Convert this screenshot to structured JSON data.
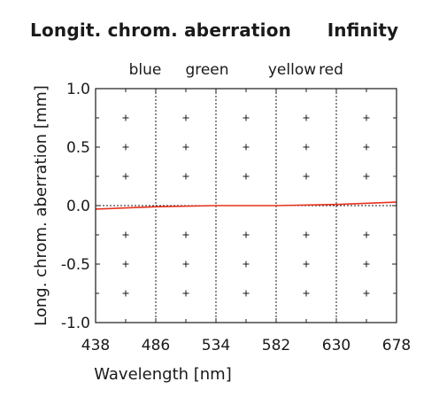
{
  "chart_data": {
    "type": "line",
    "title": "Longit. chrom. aberration",
    "subtitle": "Infinity",
    "xlabel": "Wavelength [nm]",
    "ylabel": "Long. chrom. aberration [mm]",
    "xlim": [
      438,
      678
    ],
    "ylim": [
      -1.0,
      1.0
    ],
    "xticks": [
      438,
      486,
      534,
      582,
      630,
      678
    ],
    "yticks": [
      1.0,
      0.5,
      0.0,
      -0.5,
      -1.0
    ],
    "ytick_labels": [
      "1.0",
      "0.5",
      "0.0",
      "-0.5",
      "-1.0"
    ],
    "band_lines": [
      {
        "label": "blue",
        "x": 486
      },
      {
        "label": "green",
        "x": 534
      },
      {
        "label": "yellow",
        "x": 582
      },
      {
        "label": "red",
        "x": 630
      }
    ],
    "grid": "plus-markers",
    "series": [
      {
        "color": "#e8321e",
        "x": [
          438,
          486,
          534,
          582,
          630,
          678
        ],
        "y": [
          -0.03,
          -0.01,
          0.0,
          0.0,
          0.01,
          0.03
        ]
      }
    ]
  }
}
